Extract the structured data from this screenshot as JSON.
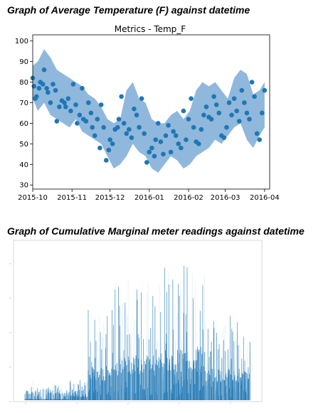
{
  "headings": {
    "first": "Graph of Average Temperature (F) against datetime",
    "second": "Graph of Cumulative Marginal meter readings against datetime"
  },
  "chart_data": [
    {
      "type": "scatter",
      "title": "Metrics - Temp_F",
      "xlabel": "",
      "ylabel": "",
      "x_axis": {
        "type": "date",
        "range": [
          "2015-10-01",
          "2016-04-05"
        ],
        "ticks": [
          "2015-10",
          "2015-11",
          "2015-12",
          "2016-01",
          "2016-02",
          "2016-03",
          "2016-04"
        ]
      },
      "ylim": [
        28,
        103
      ],
      "yticks": [
        30,
        40,
        50,
        60,
        70,
        80,
        90,
        100
      ],
      "grid": false,
      "colors": {
        "points": "#1f77b4",
        "band": "#8fb8dc"
      },
      "band": {
        "x": [
          "2015-10-01",
          "2015-10-05",
          "2015-10-10",
          "2015-10-15",
          "2015-10-20",
          "2015-10-25",
          "2015-10-30",
          "2015-11-04",
          "2015-11-09",
          "2015-11-14",
          "2015-11-19",
          "2015-11-24",
          "2015-11-29",
          "2015-12-04",
          "2015-12-09",
          "2015-12-14",
          "2015-12-19",
          "2015-12-24",
          "2015-12-29",
          "2016-01-03",
          "2016-01-08",
          "2016-01-13",
          "2016-01-18",
          "2016-01-23",
          "2016-01-28",
          "2016-02-02",
          "2016-02-07",
          "2016-02-12",
          "2016-02-17",
          "2016-02-22",
          "2016-02-27",
          "2016-03-03",
          "2016-03-08",
          "2016-03-13",
          "2016-03-18",
          "2016-03-23",
          "2016-03-28",
          "2016-04-01"
        ],
        "lower": [
          72,
          66,
          70,
          64,
          62,
          60,
          58,
          62,
          56,
          54,
          52,
          50,
          44,
          38,
          40,
          44,
          50,
          46,
          44,
          38,
          36,
          40,
          44,
          42,
          38,
          40,
          44,
          46,
          48,
          52,
          50,
          54,
          58,
          60,
          52,
          48,
          54,
          58
        ],
        "upper": [
          88,
          90,
          96,
          92,
          86,
          84,
          82,
          80,
          78,
          74,
          72,
          68,
          62,
          60,
          62,
          76,
          80,
          72,
          70,
          62,
          60,
          60,
          64,
          66,
          62,
          66,
          76,
          80,
          78,
          80,
          76,
          72,
          82,
          86,
          84,
          74,
          76,
          80
        ]
      },
      "points": {
        "x": [
          "2015-10-01",
          "2015-10-02",
          "2015-10-03",
          "2015-10-04",
          "2015-10-06",
          "2015-10-07",
          "2015-10-09",
          "2015-10-10",
          "2015-10-12",
          "2015-10-13",
          "2015-10-15",
          "2015-10-17",
          "2015-10-19",
          "2015-10-20",
          "2015-10-22",
          "2015-10-24",
          "2015-10-26",
          "2015-10-27",
          "2015-10-29",
          "2015-10-31",
          "2015-11-02",
          "2015-11-04",
          "2015-11-05",
          "2015-11-07",
          "2015-11-09",
          "2015-11-10",
          "2015-11-12",
          "2015-11-14",
          "2015-11-16",
          "2015-11-17",
          "2015-11-19",
          "2015-11-21",
          "2015-11-23",
          "2015-11-24",
          "2015-11-26",
          "2015-11-28",
          "2015-11-30",
          "2015-12-01",
          "2015-12-03",
          "2015-12-05",
          "2015-12-07",
          "2015-12-08",
          "2015-12-10",
          "2015-12-12",
          "2015-12-14",
          "2015-12-16",
          "2015-12-18",
          "2015-12-20",
          "2015-12-22",
          "2015-12-24",
          "2015-12-26",
          "2015-12-28",
          "2015-12-30",
          "2016-01-01",
          "2016-01-03",
          "2016-01-05",
          "2016-01-06",
          "2016-01-08",
          "2016-01-10",
          "2016-01-12",
          "2016-01-14",
          "2016-01-16",
          "2016-01-18",
          "2016-01-20",
          "2016-01-22",
          "2016-01-24",
          "2016-01-26",
          "2016-01-28",
          "2016-01-30",
          "2016-02-01",
          "2016-02-03",
          "2016-02-05",
          "2016-02-07",
          "2016-02-09",
          "2016-02-11",
          "2016-02-13",
          "2016-02-15",
          "2016-02-17",
          "2016-02-19",
          "2016-02-21",
          "2016-02-23",
          "2016-02-25",
          "2016-02-27",
          "2016-02-29",
          "2016-03-02",
          "2016-03-04",
          "2016-03-06",
          "2016-03-08",
          "2016-03-10",
          "2016-03-12",
          "2016-03-14",
          "2016-03-16",
          "2016-03-18",
          "2016-03-20",
          "2016-03-22",
          "2016-03-24",
          "2016-03-26",
          "2016-03-28",
          "2016-03-30",
          "2016-04-01"
        ],
        "y": [
          82,
          78,
          72,
          73,
          77,
          80,
          79,
          86,
          77,
          75,
          70,
          79,
          76,
          61,
          68,
          71,
          70,
          68,
          72,
          66,
          79,
          69,
          60,
          64,
          77,
          62,
          61,
          70,
          65,
          58,
          54,
          62,
          48,
          69,
          58,
          42,
          47,
          52,
          50,
          57,
          58,
          62,
          73,
          60,
          55,
          57,
          53,
          67,
          64,
          58,
          72,
          55,
          41,
          46,
          48,
          44,
          52,
          60,
          51,
          45,
          54,
          59,
          46,
          56,
          54,
          50,
          48,
          66,
          52,
          62,
          72,
          58,
          51,
          50,
          57,
          64,
          68,
          63,
          62,
          73,
          69,
          65,
          54,
          53,
          58,
          70,
          64,
          72,
          66,
          61,
          76,
          70,
          65,
          62,
          80,
          73,
          55,
          52,
          65,
          76
        ]
      }
    },
    {
      "type": "bar",
      "title": "",
      "xlabel": "",
      "ylabel": "",
      "description_of_axes": "unlabeled",
      "ylim": [
        0,
        1
      ],
      "x_tick_count": 5,
      "y_tick_count": 5,
      "grid": false,
      "colors": {
        "bars": "#1f77b4",
        "frame": "#d9d9d9"
      },
      "series": [
        {
          "values_by_segment": [
            {
              "segment": 1,
              "max_fraction": 0.1
            },
            {
              "segment": 2,
              "max_fraction": 0.55
            },
            {
              "segment": 3,
              "max_fraction": 0.75
            },
            {
              "segment": 4,
              "max_fraction": 0.85
            },
            {
              "segment": 5,
              "max_fraction": 0.5
            }
          ]
        }
      ]
    }
  ]
}
